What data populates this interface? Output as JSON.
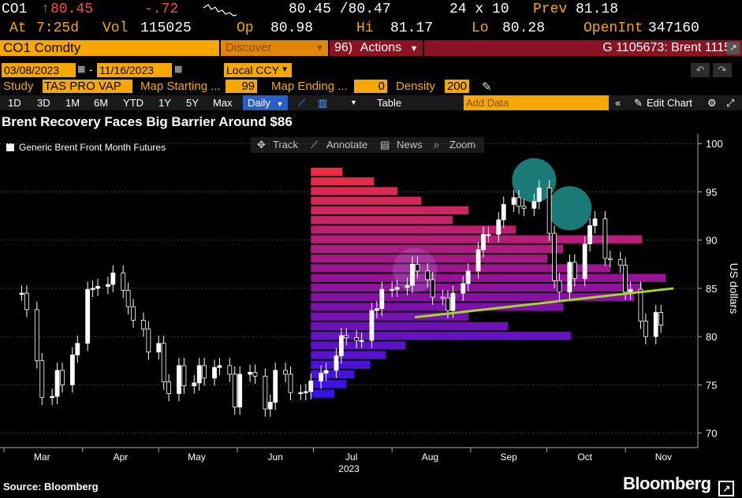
{
  "quote": {
    "ticker": "CO1",
    "last": "80.45",
    "change": "-.72",
    "bid_ask": "80.45 /80.47",
    "size": "24 x 10",
    "prev_label": "Prev",
    "prev": "81.18",
    "at_label": "At",
    "at_time": "7:25d",
    "vol_label": "Vol",
    "vol": "115025",
    "op_label": "Op",
    "op": "80.98",
    "hi_label": "Hi",
    "hi": "81.17",
    "lo_label": "Lo",
    "lo": "80.28",
    "oi_label": "OpenInt",
    "oi": "347160"
  },
  "toolbar": {
    "security": "CO1 Comdty",
    "discover": "Discover",
    "actions_code": "96)",
    "actions": "Actions",
    "graph_id": "G 1105673: Brent 1115"
  },
  "dates": {
    "start": "03/08/2023",
    "sep": "-",
    "end": "11/16/2023",
    "currency": "Local CCY"
  },
  "study": {
    "study_label": "Study",
    "study_value": "TAS PRO VAP",
    "map_start_label": "Map Starting ...",
    "map_start": "99",
    "map_end_label": "Map Ending ...",
    "map_end": "0",
    "density_label": "Density",
    "density": "200"
  },
  "ranges": {
    "items": [
      "1D",
      "3D",
      "1M",
      "6M",
      "YTD",
      "1Y",
      "5Y",
      "Max"
    ],
    "period": "Daily",
    "table": "Table",
    "add_data_placeholder": "Add Data",
    "edit_chart": "Edit Chart"
  },
  "tools": {
    "track": "Track",
    "annotate": "Annotate",
    "news": "News",
    "zoom": "Zoom"
  },
  "colors": {
    "accent": "#f7a800",
    "up": "#1ec31e",
    "down": "#ff4a3a",
    "action_bar": "#8b1222",
    "trend_line": "#a6d62b",
    "circle": "#1f8f8a"
  },
  "chart_data": {
    "type": "line",
    "title": "Brent Recovery Faces Big Barrier Around $86",
    "ylabel": "US dollars",
    "year_label": "2023",
    "ylim": [
      68.5,
      101
    ],
    "yticks": [
      70,
      75,
      80,
      85,
      90,
      95,
      100
    ],
    "x_months": [
      "Mar",
      "Apr",
      "May",
      "Jun",
      "Jul",
      "Aug",
      "Sep",
      "Oct",
      "Nov"
    ],
    "series": [
      {
        "name": "Generic Brent Front Month Futures",
        "x": [
          "03-08",
          "03-10",
          "03-14",
          "03-16",
          "03-20",
          "03-22",
          "03-24",
          "03-28",
          "03-30",
          "04-03",
          "04-05",
          "04-07",
          "04-11",
          "04-13",
          "04-17",
          "04-19",
          "04-21",
          "04-25",
          "04-27",
          "05-01",
          "05-03",
          "05-05",
          "05-09",
          "05-11",
          "05-15",
          "05-17",
          "05-19",
          "05-23",
          "05-25",
          "05-29",
          "05-31",
          "06-02",
          "06-06",
          "06-08",
          "06-12",
          "06-14",
          "06-16",
          "06-20",
          "06-22",
          "06-26",
          "06-28",
          "06-30",
          "07-04",
          "07-06",
          "07-10",
          "07-12",
          "07-14",
          "07-18",
          "07-20",
          "07-24",
          "07-26",
          "07-28",
          "08-01",
          "08-03",
          "08-07",
          "08-09",
          "08-11",
          "08-15",
          "08-17",
          "08-21",
          "08-23",
          "08-25",
          "08-29",
          "08-31",
          "09-04",
          "09-06",
          "09-08",
          "09-12",
          "09-14",
          "09-18",
          "09-20",
          "09-22",
          "09-26",
          "09-28",
          "10-02",
          "10-04",
          "10-06",
          "10-10",
          "10-12",
          "10-16",
          "10-18",
          "10-20",
          "10-24",
          "10-26",
          "10-30",
          "11-01",
          "11-03",
          "11-07",
          "11-09",
          "11-13",
          "11-15"
        ],
        "values": [
          84.5,
          82.8,
          77.5,
          73.7,
          73.8,
          76.5,
          75.0,
          78.1,
          79.3,
          84.9,
          85.0,
          85.2,
          85.4,
          86.6,
          84.8,
          83.1,
          81.7,
          80.8,
          78.4,
          79.3,
          75.3,
          74.1,
          77.0,
          74.9,
          75.2,
          77.0,
          75.7,
          76.8,
          77.0,
          76.1,
          72.7,
          76.1,
          76.3,
          75.9,
          72.5,
          73.2,
          76.5,
          76.1,
          74.2,
          74.2,
          74.3,
          75.4,
          76.2,
          76.5,
          78.0,
          80.1,
          79.9,
          79.6,
          79.6,
          82.7,
          82.9,
          84.9,
          84.9,
          85.1,
          85.3,
          87.5,
          86.8,
          85.9,
          84.1,
          84.0,
          82.7,
          84.5,
          85.5,
          86.8,
          89.0,
          90.6,
          90.6,
          92.1,
          93.7,
          94.4,
          93.5,
          93.3,
          94.0,
          95.4,
          90.7,
          85.8,
          84.6,
          87.7,
          86.0,
          89.6,
          91.5,
          92.2,
          88.1,
          88.0,
          87.4,
          84.6,
          84.9,
          81.6,
          80.0,
          82.5,
          81.2
        ]
      }
    ],
    "volume_profile_levels": [
      74,
      75,
      76,
      77,
      78,
      79,
      80,
      81,
      82,
      83,
      84,
      85,
      86,
      87,
      88,
      89,
      90,
      91,
      92,
      93,
      94,
      95,
      96,
      97
    ],
    "volume_profile_values": [
      30,
      45,
      55,
      75,
      95,
      120,
      330,
      250,
      200,
      320,
      410,
      420,
      450,
      380,
      300,
      320,
      420,
      260,
      180,
      200,
      140,
      110,
      80,
      40
    ],
    "trend_line": {
      "x": [
        "08-10",
        "11-20"
      ],
      "y": [
        82.0,
        85.0
      ]
    },
    "highlight_circles": [
      {
        "x": "09-26",
        "y": 96.2
      },
      {
        "x": "10-10",
        "y": 93.3
      },
      {
        "x": "08-10",
        "y": 86.9
      }
    ]
  },
  "footer": {
    "source": "Source: Bloomberg",
    "brand": "Bloomberg"
  }
}
